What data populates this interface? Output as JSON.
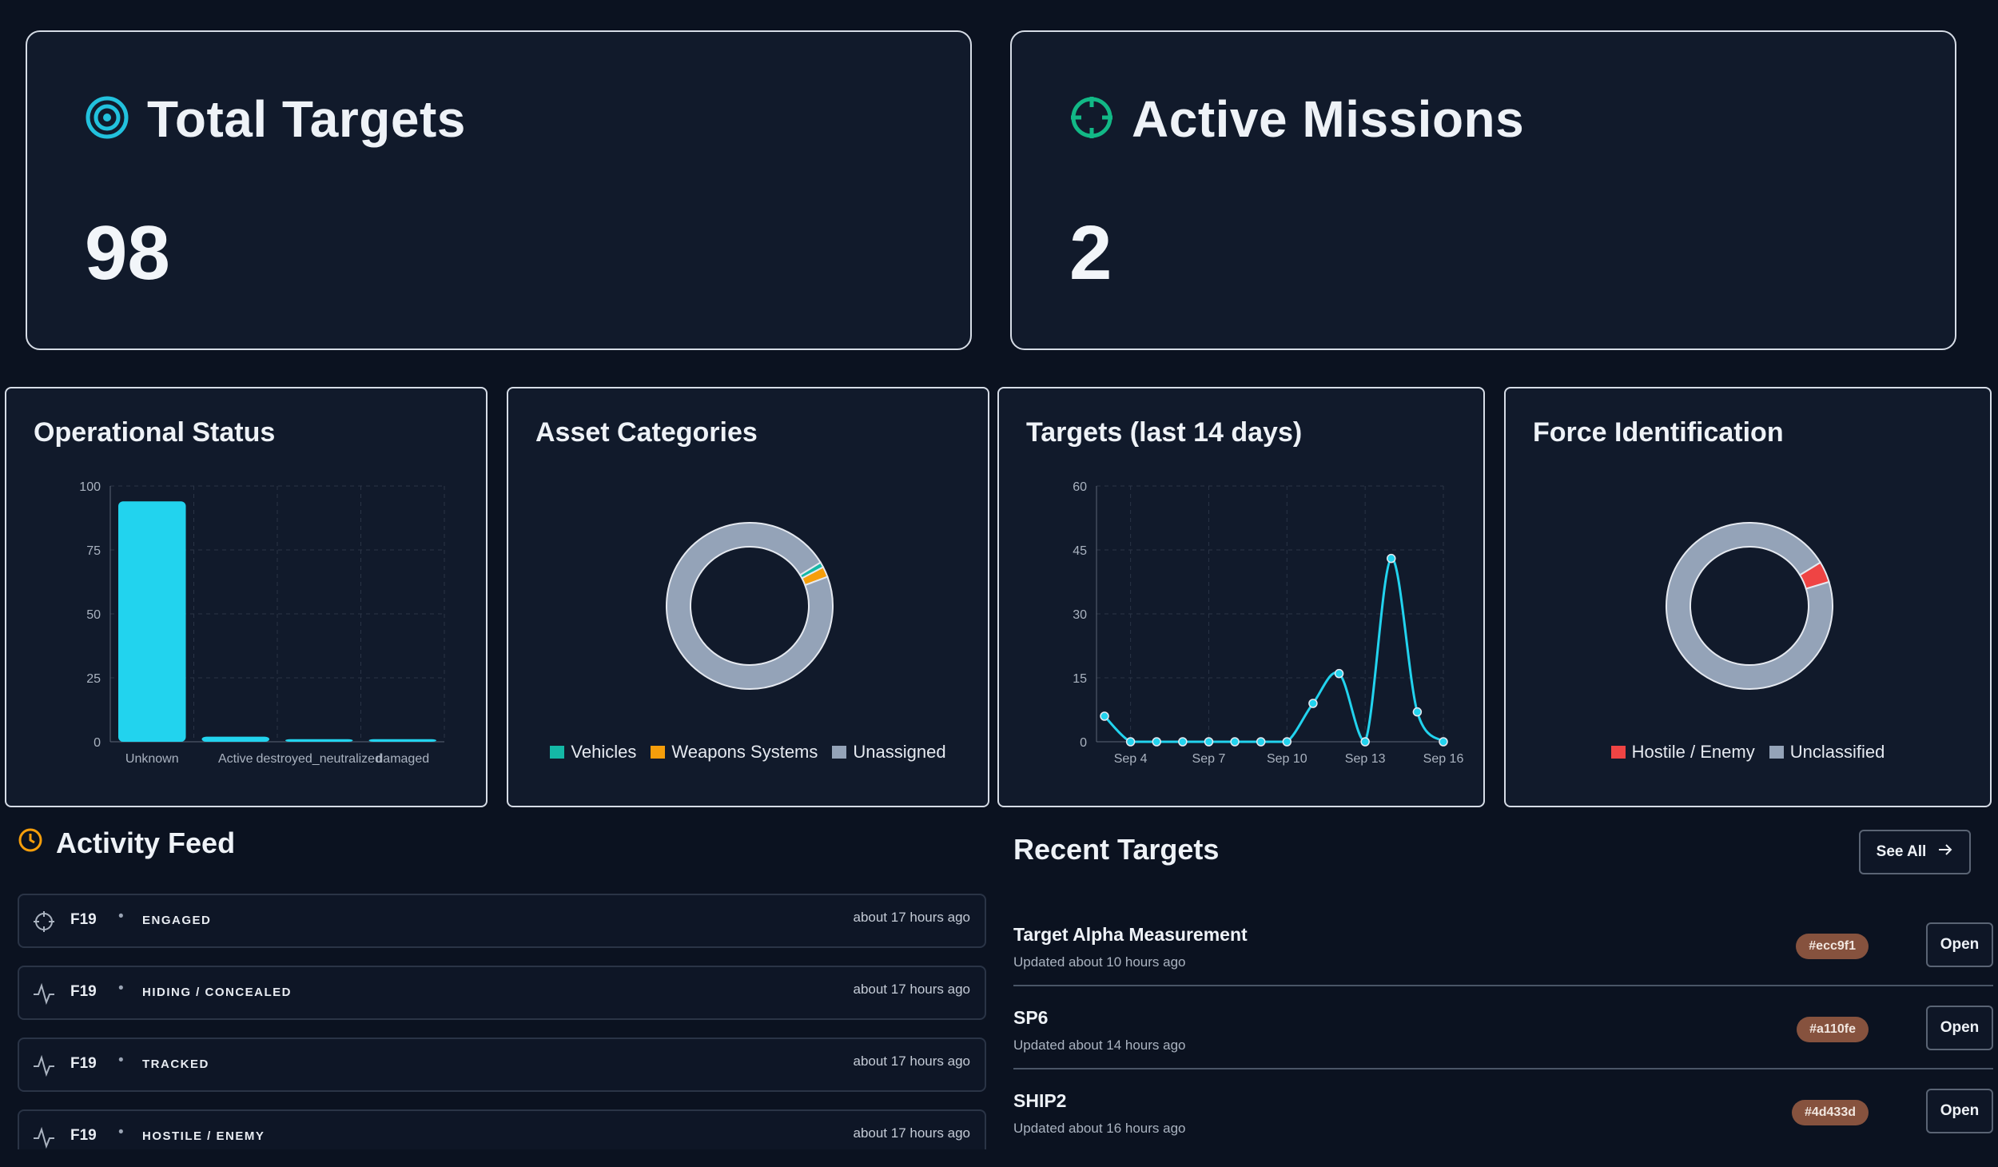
{
  "stats": [
    {
      "title": "Total Targets",
      "value": "98",
      "icon": "target-icon",
      "color": "#22c1dd"
    },
    {
      "title": "Active Missions",
      "value": "2",
      "icon": "crosshair-icon",
      "color": "#12b886"
    }
  ],
  "panels": {
    "operational": {
      "title": "Operational Status",
      "chart_data": {
        "type": "bar",
        "categories": [
          "Unknown",
          "Active",
          "destroyed_neutralized",
          "damaged"
        ],
        "values": [
          94,
          2,
          1,
          1
        ],
        "ylim": [
          0,
          100
        ],
        "yticks": [
          0,
          25,
          50,
          75,
          100
        ],
        "color": "#22d3ee",
        "grid": true
      }
    },
    "assets": {
      "title": "Asset Categories",
      "chart_data": {
        "type": "pie",
        "donut": true,
        "labels": [
          "Vehicles",
          "Weapons Systems",
          "Unassigned"
        ],
        "values": [
          1,
          2,
          95
        ],
        "colors": [
          "#14b8a6",
          "#f59e0b",
          "#94a3b8"
        ],
        "legend": "bottom"
      }
    },
    "targets14": {
      "title": "Targets (last 14 days)",
      "chart_data": {
        "type": "line",
        "x": [
          "Sep 3",
          "Sep 4",
          "Sep 5",
          "Sep 6",
          "Sep 7",
          "Sep 8",
          "Sep 9",
          "Sep 10",
          "Sep 11",
          "Sep 12",
          "Sep 13",
          "Sep 14",
          "Sep 15",
          "Sep 16"
        ],
        "xticks": [
          "Sep 4",
          "Sep 7",
          "Sep 10",
          "Sep 13",
          "Sep 16"
        ],
        "values": [
          6,
          0,
          0,
          0,
          0,
          0,
          0,
          0,
          9,
          16,
          0,
          43,
          7,
          0
        ],
        "ylim": [
          0,
          60
        ],
        "yticks": [
          0,
          15,
          30,
          45,
          60
        ],
        "color": "#22d3ee",
        "grid": true
      }
    },
    "force": {
      "title": "Force Identification",
      "chart_data": {
        "type": "pie",
        "donut": true,
        "labels": [
          "Hostile / Enemy",
          "Unclassified"
        ],
        "values": [
          4,
          94
        ],
        "colors": [
          "#ef4444",
          "#94a3b8"
        ],
        "legend": "bottom"
      }
    }
  },
  "activity": {
    "title": "Activity Feed",
    "items": [
      {
        "icon": "crosshair-icon",
        "code": "F19",
        "status": "ENGAGED",
        "time": "about 17 hours ago"
      },
      {
        "icon": "activity-icon",
        "code": "F19",
        "status": "HIDING / CONCEALED",
        "time": "about 17 hours ago"
      },
      {
        "icon": "activity-icon",
        "code": "F19",
        "status": "TRACKED",
        "time": "about 17 hours ago"
      },
      {
        "icon": "activity-icon",
        "code": "F19",
        "status": "HOSTILE / ENEMY",
        "time": "about 17 hours ago"
      }
    ]
  },
  "recent": {
    "title": "Recent Targets",
    "see_all": "See All",
    "items": [
      {
        "name": "Target Alpha Measurement",
        "updated": "Updated about 10 hours ago",
        "badge": "#ecc9f1",
        "open": "Open"
      },
      {
        "name": "SP6",
        "updated": "Updated about 14 hours ago",
        "badge": "#a110fe",
        "open": "Open"
      },
      {
        "name": "SHIP2",
        "updated": "Updated about 16 hours ago",
        "badge": "#4d433d",
        "open": "Open"
      }
    ]
  }
}
